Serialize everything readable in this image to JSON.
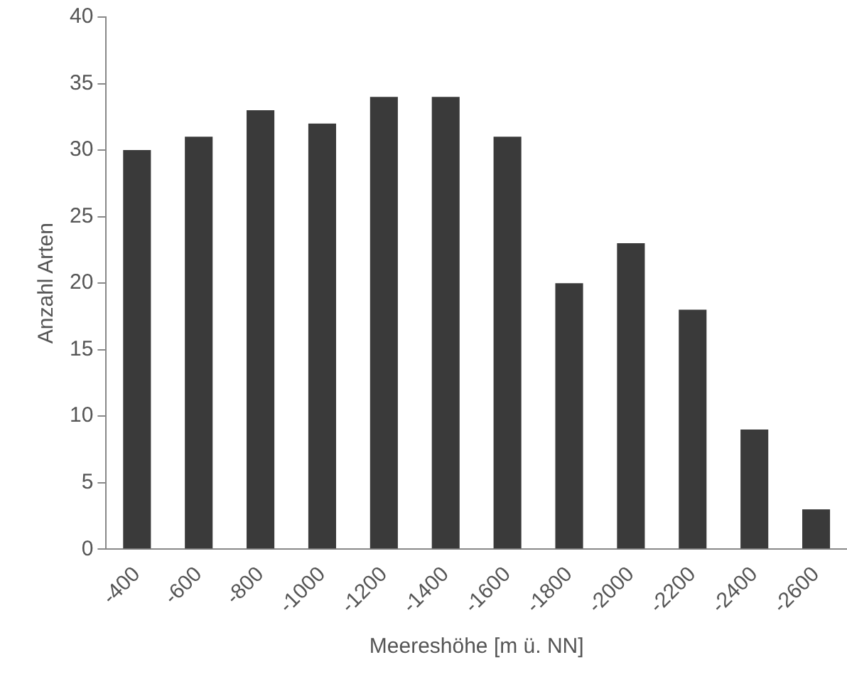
{
  "chart_data": {
    "type": "bar",
    "xlabel": "Meereshöhe [m ü. NN]",
    "ylabel": "Anzahl Arten",
    "categories": [
      "-400",
      "-600",
      "-800",
      "-1000",
      "-1200",
      "-1400",
      "-1600",
      "-1800",
      "-2000",
      "-2200",
      "-2400",
      "-2600"
    ],
    "values": [
      30,
      31,
      33,
      32,
      34,
      34,
      31,
      20,
      23,
      18,
      9,
      3
    ],
    "color": "#3a3a3a",
    "ylim": [
      0,
      40
    ],
    "yticks": [
      0,
      5,
      10,
      15,
      20,
      25,
      30,
      35,
      40
    ],
    "grid": false,
    "legend": false
  }
}
